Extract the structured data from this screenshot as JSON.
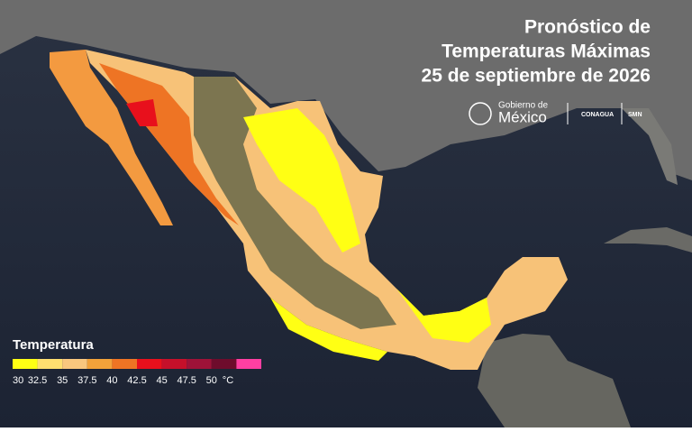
{
  "title": {
    "lines": [
      "Pronóstico de",
      "Temperaturas Máximas",
      "25 de septiembre de 2026"
    ]
  },
  "logos": {
    "gobierno": [
      "Gobierno de",
      "México"
    ],
    "conagua": "CONAGUA",
    "smn": "SMN"
  },
  "legend": {
    "title": "Temperatura",
    "unit": "°C",
    "ticks": [
      30,
      32.5,
      35,
      37.5,
      40,
      42.5,
      45,
      47.5,
      50
    ],
    "colors": [
      "#ffff14",
      "#ffdf70",
      "#f9c77e",
      "#f2a23a",
      "#ee7424",
      "#e8101c",
      "#c5102a",
      "#9e1238",
      "#6e0c2c",
      "#ff3fa2"
    ]
  }
}
